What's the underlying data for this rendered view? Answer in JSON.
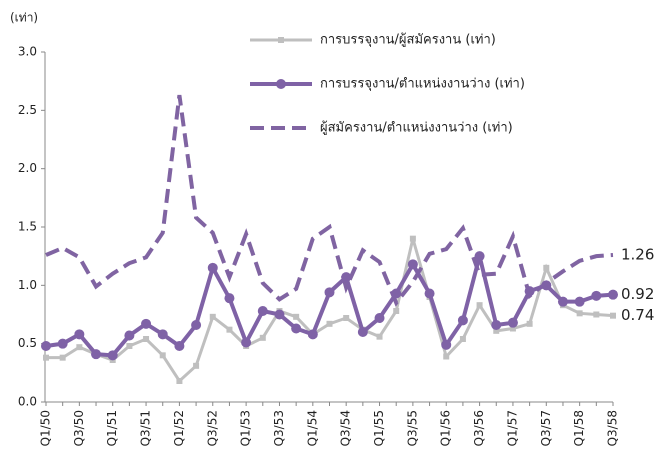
{
  "chart_data": {
    "type": "line",
    "y_label": "(เท่า)",
    "categories": [
      "Q1/50",
      null,
      "Q3/50",
      null,
      "Q1/51",
      null,
      "Q3/51",
      null,
      "Q1/52",
      null,
      "Q3/52",
      null,
      "Q1/53",
      null,
      "Q3/53",
      null,
      "Q1/54",
      null,
      "Q3/54",
      null,
      "Q1/55",
      null,
      "Q3/55",
      null,
      "Q1/56",
      null,
      "Q3/56",
      null,
      "Q1/57",
      null,
      "Q3/57",
      null,
      "Q1/58",
      null,
      "Q3/58"
    ],
    "series": [
      {
        "name": "การบรรจุงาน/ผู้สมัครงาน (เท่า)",
        "color": "#bfbfbf",
        "marker": "square",
        "dash": false,
        "values": [
          0.38,
          0.38,
          0.47,
          0.41,
          0.36,
          0.48,
          0.54,
          0.4,
          0.18,
          0.31,
          0.73,
          0.62,
          0.48,
          0.55,
          0.78,
          0.73,
          0.58,
          0.67,
          0.72,
          0.62,
          0.56,
          0.78,
          1.4,
          0.9,
          0.39,
          0.54,
          0.83,
          0.61,
          0.63,
          0.67,
          1.15,
          0.83,
          0.76,
          0.75,
          0.74
        ]
      },
      {
        "name": "การบรรจุงาน/ตำแหน่งงานว่าง (เท่า)",
        "color": "#7f62a6",
        "marker": "circle",
        "dash": false,
        "values": [
          0.48,
          0.5,
          0.58,
          0.41,
          0.4,
          0.57,
          0.67,
          0.58,
          0.48,
          0.66,
          1.15,
          0.89,
          0.51,
          0.78,
          0.75,
          0.63,
          0.58,
          0.94,
          1.07,
          0.6,
          0.72,
          0.93,
          1.18,
          0.93,
          0.49,
          0.7,
          1.25,
          0.66,
          0.68,
          0.95,
          1.0,
          0.86,
          0.86,
          0.91,
          0.92
        ]
      },
      {
        "name": "ผู้สมัครงาน/ตำแหน่งงานว่าง (เท่า)",
        "color": "#8064a2",
        "marker": "none",
        "dash": true,
        "values": [
          1.26,
          1.32,
          1.24,
          0.99,
          1.1,
          1.19,
          1.24,
          1.45,
          2.63,
          1.58,
          1.45,
          1.07,
          1.44,
          1.02,
          0.88,
          0.97,
          1.4,
          1.5,
          0.98,
          1.3,
          1.2,
          0.85,
          1.03,
          1.27,
          1.31,
          1.49,
          1.09,
          1.1,
          1.42,
          0.91,
          1.02,
          1.12,
          1.21,
          1.25,
          1.26
        ]
      }
    ],
    "ylim": [
      0,
      3
    ],
    "yticks": [
      {
        "value": 0,
        "label": "0.0"
      },
      0.5,
      {
        "value": 1,
        "label": "1.0"
      },
      1.5,
      {
        "value": 2,
        "label": "2.0"
      },
      2.5,
      {
        "value": 3,
        "label": "3.0"
      }
    ],
    "grid": false,
    "legend": "top-right"
  }
}
